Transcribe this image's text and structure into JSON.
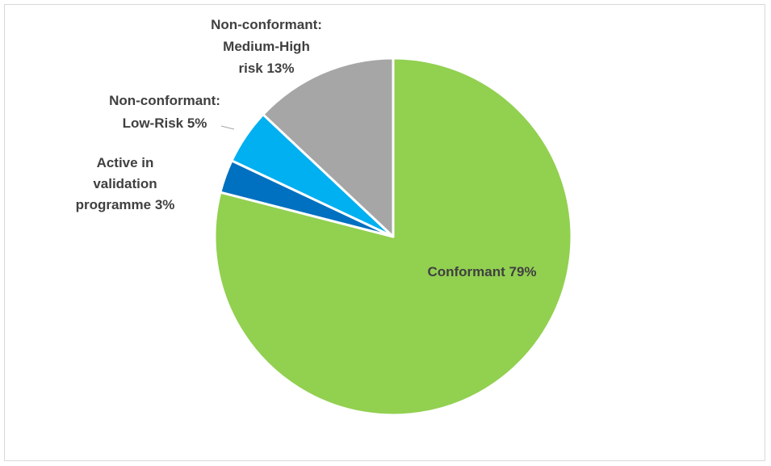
{
  "chart_data": {
    "type": "pie",
    "title": "",
    "start_angle_deg": 0,
    "direction": "clockwise",
    "slices": [
      {
        "name": "Conformant",
        "value": 79,
        "color": "#92d050",
        "label_lines": [
          "Conformant 79%"
        ]
      },
      {
        "name": "Active in validation programme",
        "value": 3,
        "color": "#0070c0",
        "label_lines": [
          "Active in",
          "validation",
          "programme 3%"
        ]
      },
      {
        "name": "Non-conformant: Low-Risk",
        "value": 5,
        "color": "#00b0f0",
        "label_lines": [
          "Non-conformant:",
          "Low-Risk 5%"
        ]
      },
      {
        "name": "Non-conformant: Medium-High risk",
        "value": 13,
        "color": "#a6a6a6",
        "label_lines": [
          "Non-conformant:",
          "Medium-High",
          "risk 13%"
        ]
      }
    ],
    "legend": "none",
    "data_labels": "outside-except-largest"
  }
}
